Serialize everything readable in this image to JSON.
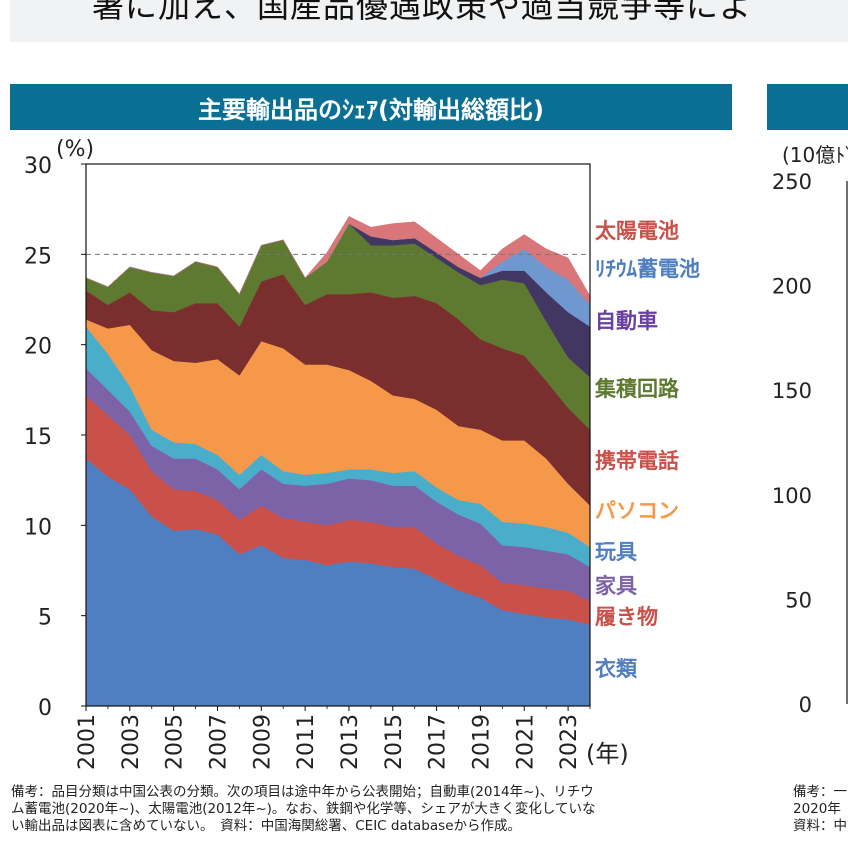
{
  "top_banner": {
    "text": "署に加え、国産品優遇政策や過当競争等によ"
  },
  "panel_title": "主要輸出品のｼｪｱ(対輸出総額比)",
  "chart_data": {
    "type": "area",
    "stacked": true,
    "title": "主要輸出品のｼｪｱ(対輸出総額比)",
    "ylabel": "(%)",
    "xlabel": "(年)",
    "ylim": [
      0,
      30
    ],
    "xlim": [
      2001,
      2024
    ],
    "y_ticks": [
      "0",
      "5",
      "10",
      "15",
      "20",
      "25",
      "30"
    ],
    "x_ticks": [
      "2001",
      "2003",
      "2005",
      "2007",
      "2009",
      "2011",
      "2013",
      "2015",
      "2017",
      "2019",
      "2021",
      "2023"
    ],
    "x_tick_values": [
      2001,
      2003,
      2005,
      2007,
      2009,
      2011,
      2013,
      2015,
      2017,
      2019,
      2021,
      2023
    ],
    "x": [
      2001,
      2002,
      2003,
      2004,
      2005,
      2006,
      2007,
      2008,
      2009,
      2010,
      2011,
      2012,
      2013,
      2014,
      2015,
      2016,
      2017,
      2018,
      2019,
      2020,
      2021,
      2022,
      2023,
      2024
    ],
    "reference_line": 25,
    "series": [
      {
        "name": "衣類",
        "color": "#4f7fc0",
        "values": [
          13.7,
          12.7,
          12.0,
          10.5,
          9.7,
          9.8,
          9.5,
          8.4,
          8.9,
          8.2,
          8.1,
          7.8,
          8.0,
          7.9,
          7.7,
          7.6,
          7.0,
          6.4,
          6.0,
          5.3,
          5.1,
          4.9,
          4.8,
          4.5
        ]
      },
      {
        "name": "履き物",
        "color": "#c9514a",
        "values": [
          3.5,
          3.4,
          3.0,
          2.5,
          2.3,
          2.1,
          1.9,
          1.9,
          2.2,
          2.2,
          2.1,
          2.2,
          2.3,
          2.3,
          2.2,
          2.3,
          2.0,
          1.9,
          1.8,
          1.5,
          1.6,
          1.6,
          1.6,
          1.3
        ]
      },
      {
        "name": "家具",
        "color": "#7c63a8",
        "values": [
          1.5,
          1.4,
          1.3,
          1.4,
          1.7,
          1.8,
          1.7,
          1.7,
          2.0,
          1.9,
          2.0,
          2.3,
          2.3,
          2.3,
          2.3,
          2.3,
          2.3,
          2.3,
          2.3,
          2.1,
          2.1,
          2.1,
          2.0,
          1.9
        ]
      },
      {
        "name": "玩具",
        "color": "#4aaecb",
        "values": [
          2.3,
          2.0,
          1.4,
          0.9,
          0.9,
          0.8,
          0.8,
          0.8,
          0.8,
          0.7,
          0.6,
          0.6,
          0.5,
          0.6,
          0.7,
          0.8,
          0.8,
          0.8,
          1.1,
          1.3,
          1.3,
          1.3,
          1.2,
          1.1
        ]
      },
      {
        "name": "パソコン",
        "color": "#f6984a",
        "values": [
          0.4,
          1.4,
          3.4,
          4.4,
          4.5,
          4.5,
          5.3,
          5.5,
          6.3,
          6.8,
          6.1,
          6.0,
          5.5,
          4.9,
          4.3,
          4.0,
          4.3,
          4.1,
          4.1,
          4.5,
          4.6,
          3.8,
          2.7,
          2.3
        ]
      },
      {
        "name": "携帯電話",
        "color": "#7a2e2e",
        "values": [
          1.6,
          1.3,
          1.8,
          2.2,
          2.7,
          3.3,
          3.1,
          2.7,
          3.3,
          4.1,
          3.3,
          3.9,
          4.2,
          4.9,
          5.4,
          5.7,
          5.9,
          5.9,
          5.0,
          5.1,
          4.7,
          4.3,
          4.2,
          4.2
        ]
      },
      {
        "name": "集積回路",
        "color": "#5e7a30",
        "values": [
          0.7,
          1.0,
          1.4,
          2.1,
          2.0,
          2.3,
          2.0,
          1.8,
          2.0,
          1.9,
          1.5,
          1.8,
          3.9,
          2.6,
          2.9,
          2.9,
          2.5,
          2.6,
          3.0,
          3.8,
          4.0,
          3.3,
          2.8,
          2.9
        ]
      },
      {
        "name": "自動車",
        "color": "#423762",
        "values": [
          0,
          0,
          0,
          0,
          0,
          0,
          0,
          0,
          0,
          0,
          0,
          0,
          0,
          0.5,
          0.3,
          0.3,
          0.3,
          0.3,
          0.4,
          0.5,
          0.7,
          1.6,
          2.5,
          2.8
        ]
      },
      {
        "name": "リチウム蓄電池",
        "color": "#6f98d0",
        "values": [
          0,
          0,
          0,
          0,
          0,
          0,
          0,
          0,
          0,
          0,
          0,
          0,
          0,
          0,
          0,
          0,
          0,
          0,
          0,
          0.5,
          1.2,
          1.4,
          1.8,
          1.2
        ]
      },
      {
        "name": "太陽電池",
        "color": "#d8767a",
        "values": [
          0,
          0,
          0,
          0,
          0,
          0,
          0,
          0,
          0,
          0,
          0,
          0.5,
          0.4,
          0.5,
          0.9,
          0.9,
          0.8,
          0.7,
          0.4,
          0.7,
          0.8,
          1.0,
          1.2,
          0.5
        ]
      }
    ],
    "labels": [
      {
        "text": "太陽電池",
        "color": "#c9514a"
      },
      {
        "text": "ﾘﾁｳﾑ蓄電池",
        "color": "#4f7fc0"
      },
      {
        "text": "自動車",
        "color": "#6a3fa0"
      },
      {
        "text": "集積回路",
        "color": "#5e7a30"
      },
      {
        "text": "携帯電話",
        "color": "#c9514a"
      },
      {
        "text": "パソコン",
        "color": "#f6984a"
      },
      {
        "text": "玩具",
        "color": "#4f7fc0"
      },
      {
        "text": "家具",
        "color": "#7c63a8"
      },
      {
        "text": "履き物",
        "color": "#c9514a"
      },
      {
        "text": "衣類",
        "color": "#4f7fc0"
      }
    ]
  },
  "right_chart": {
    "ylabel": "(10億ﾄﾞ",
    "y_ticks": [
      "250",
      "200",
      "150",
      "100",
      "50",
      "0"
    ]
  },
  "notes": {
    "line1": "備考：品目分類は中国公表の分類。次の項目は途中年から公表開始；自動車(2014年~)、リチウ",
    "line2": "ム蓄電池(2020年~)、太陽電池(2012年~)。なお、鉄鋼や化学等、シェアが大きく変化していな",
    "line3": "い輸出品は図表に含めていない。　資料：中国海関総署、CEIC databaseから作成。"
  },
  "right_notes": {
    "line1": "備考：一",
    "line2": "2020年",
    "line3": "資料：中"
  }
}
